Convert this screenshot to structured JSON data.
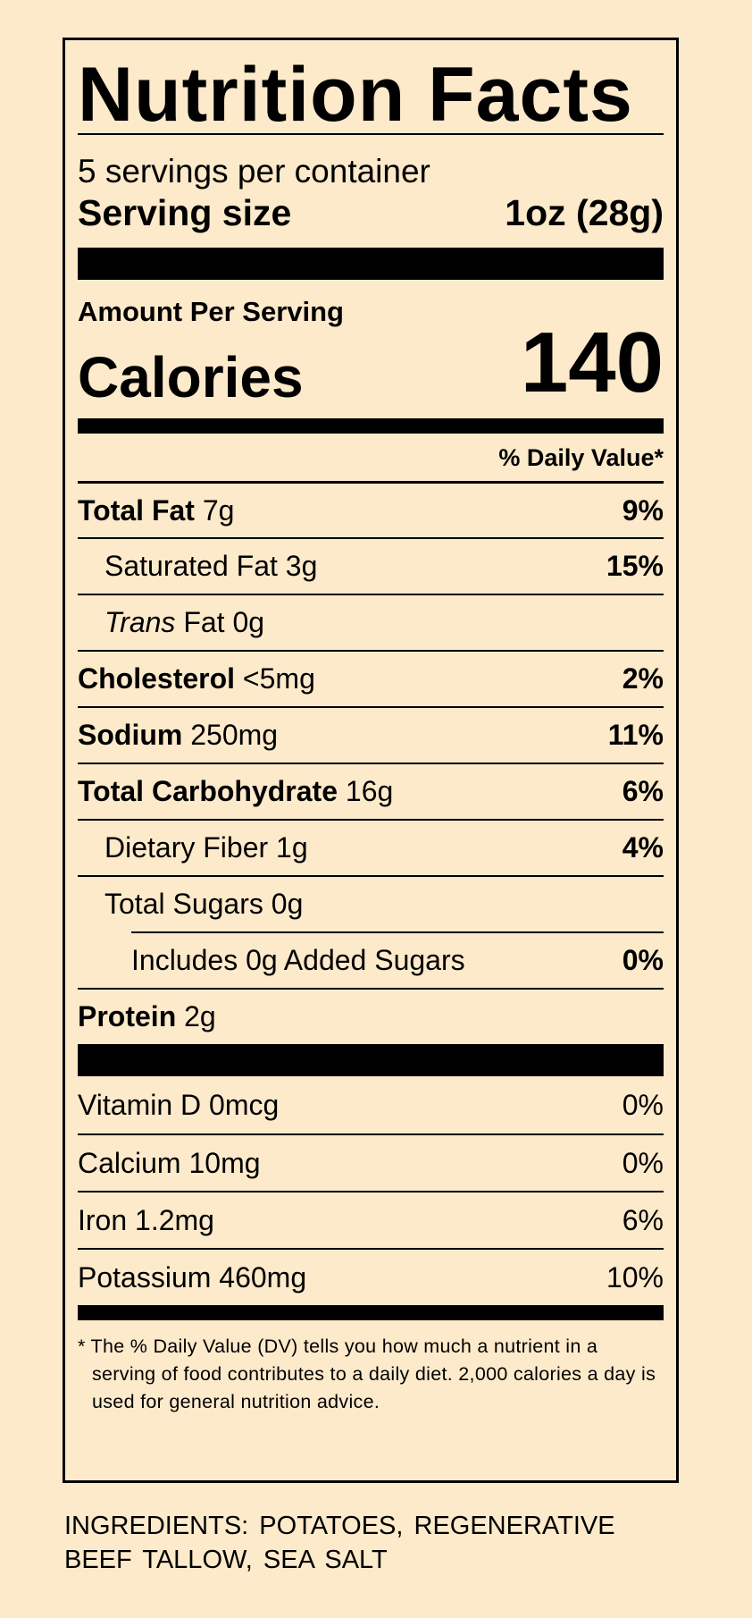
{
  "title": "Nutrition Facts",
  "servings_per_container": "5 servings per container",
  "serving_size": {
    "label": "Serving size",
    "value": "1oz (28g)"
  },
  "amount_per_serving": "Amount Per Serving",
  "calories": {
    "label": "Calories",
    "value": "140"
  },
  "daily_value_header": "% Daily Value*",
  "nutrients": [
    {
      "name": "Total Fat",
      "amount": "7g",
      "dv": "9%"
    },
    {
      "name": "Saturated Fat",
      "amount": "3g",
      "dv": "15%"
    },
    {
      "name_italic": "Trans",
      "name": "Fat",
      "amount": "0g",
      "dv": ""
    },
    {
      "name": "Cholesterol",
      "amount": "<5mg",
      "dv": "2%"
    },
    {
      "name": "Sodium",
      "amount": "250mg",
      "dv": "11%"
    },
    {
      "name": "Total Carbohydrate",
      "amount": "16g",
      "dv": "6%"
    },
    {
      "name": "Dietary Fiber",
      "amount": "1g",
      "dv": "4%"
    },
    {
      "name": "Total Sugars",
      "amount": "0g",
      "dv": ""
    },
    {
      "text": "Includes 0g Added Sugars",
      "dv": "0%"
    },
    {
      "name": "Protein",
      "amount": "2g",
      "dv": ""
    }
  ],
  "vitamins": [
    {
      "text": "Vitamin D 0mcg",
      "dv": "0%"
    },
    {
      "text": "Calcium 10mg",
      "dv": "0%"
    },
    {
      "text": "Iron 1.2mg",
      "dv": "6%"
    },
    {
      "text": "Potassium 460mg",
      "dv": "10%"
    }
  ],
  "footnote": "* The % Daily Value (DV) tells you how much a nutrient in a serving of food contributes to a daily diet. 2,000 calories a day is used for general nutrition advice.",
  "ingredients": "INGREDIENTS:  POTATOES,  REGENERATIVE BEEF TALLOW,  SEA SALT"
}
